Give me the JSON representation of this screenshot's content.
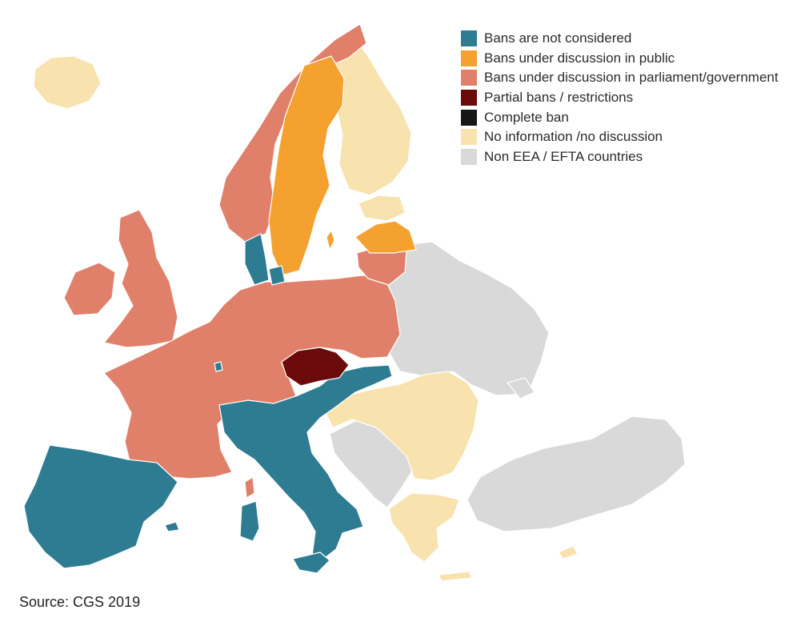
{
  "colors": {
    "not_considered": "#2e7c91",
    "public": "#f4a12f",
    "parliament": "#e0806a",
    "partial": "#6b0a0a",
    "complete": "#161616",
    "no_info": "#f8e2ad",
    "non_eea": "#d9d9d9"
  },
  "legend": [
    {
      "key": "not_considered",
      "label": "Bans are not considered"
    },
    {
      "key": "public",
      "label": "Bans under discussion in public"
    },
    {
      "key": "parliament",
      "label": "Bans under discussion in parliament/government"
    },
    {
      "key": "partial",
      "label": "Partial bans / restrictions"
    },
    {
      "key": "complete",
      "label": "Complete ban"
    },
    {
      "key": "no_info",
      "label": "No information /no discussion"
    },
    {
      "key": "non_eea",
      "label": "Non EEA / EFTA countries"
    }
  ],
  "source": "Source: CGS 2019"
}
